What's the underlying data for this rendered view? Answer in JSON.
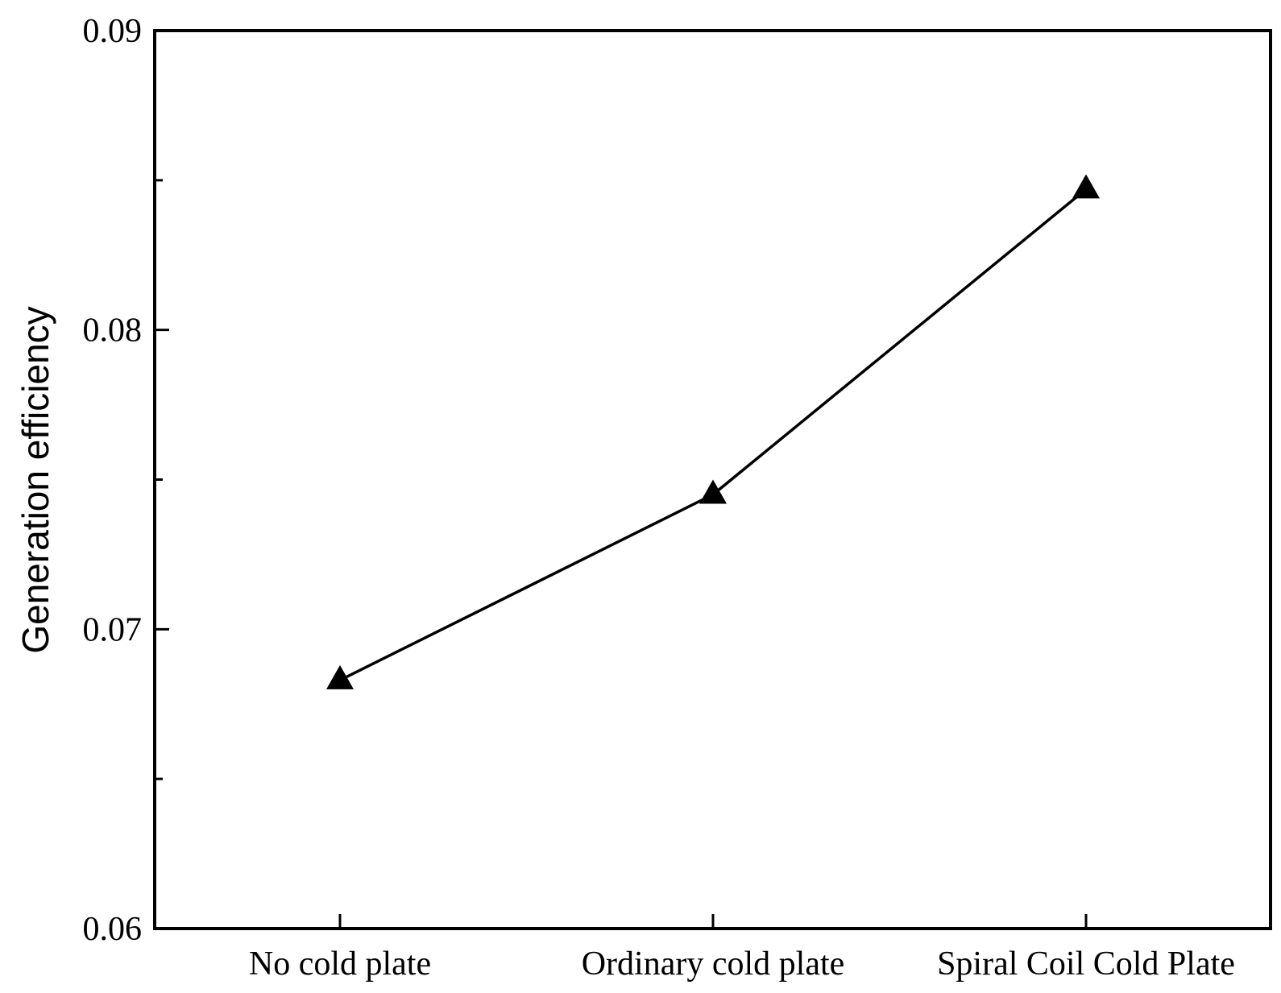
{
  "chart_data": {
    "type": "line",
    "title": "",
    "xlabel": "",
    "ylabel": "Generation efficiency",
    "categories": [
      "No cold plate",
      "Ordinary cold plate",
      "Spiral Coil Cold Plate"
    ],
    "series": [
      {
        "name": "Generation efficiency",
        "marker": "triangle",
        "values": [
          0.0683,
          0.0745,
          0.0847
        ]
      }
    ],
    "ylim": [
      0.06,
      0.09
    ],
    "yticks": [
      0.06,
      0.07,
      0.08,
      0.09
    ],
    "ytick_labels": [
      "0.06",
      "0.07",
      "0.08",
      "0.09"
    ],
    "yminor": [
      0.065,
      0.075,
      0.085
    ],
    "grid": false,
    "colors": {
      "line": "#000000",
      "marker": "#000000",
      "axis": "#000000",
      "background": "#ffffff"
    }
  }
}
